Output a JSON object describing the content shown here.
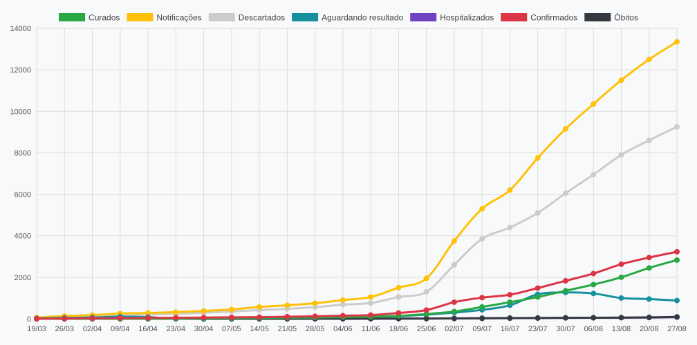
{
  "chart_data": {
    "type": "line",
    "categories": [
      "19/03",
      "26/03",
      "02/04",
      "09/04",
      "16/04",
      "23/04",
      "30/04",
      "07/05",
      "14/05",
      "21/05",
      "28/05",
      "04/06",
      "11/06",
      "18/06",
      "25/06",
      "02/07",
      "09/07",
      "16/07",
      "23/07",
      "30/07",
      "06/08",
      "13/08",
      "20/08",
      "27/08"
    ],
    "y_ticks": [
      0,
      2000,
      4000,
      6000,
      8000,
      10000,
      12000,
      14000
    ],
    "ylim": [
      0,
      14000
    ],
    "grid": true,
    "legend_position": "top",
    "series": [
      {
        "name": "Curados",
        "color": "#28a745",
        "values": [
          0,
          0,
          0,
          0,
          0,
          0,
          20,
          30,
          40,
          50,
          60,
          80,
          100,
          140,
          230,
          350,
          570,
          800,
          1050,
          1350,
          1650,
          2000,
          2450,
          2830
        ]
      },
      {
        "name": "Notificações",
        "color": "#ffc107",
        "values": [
          60,
          130,
          180,
          250,
          280,
          320,
          380,
          450,
          570,
          650,
          750,
          900,
          1050,
          1500,
          1950,
          3750,
          5300,
          6200,
          7750,
          9150,
          10350,
          11500,
          12500,
          13350
        ]
      },
      {
        "name": "Descartados",
        "color": "#cccccc",
        "values": [
          30,
          80,
          120,
          180,
          200,
          240,
          290,
          350,
          420,
          480,
          560,
          680,
          760,
          1050,
          1300,
          2600,
          3850,
          4400,
          5100,
          6050,
          6950,
          7900,
          8600,
          9250
        ]
      },
      {
        "name": "Aguardando resultado",
        "color": "#17909e",
        "values": [
          20,
          40,
          60,
          100,
          80,
          0,
          0,
          20,
          30,
          40,
          50,
          60,
          100,
          130,
          200,
          300,
          430,
          650,
          1180,
          1270,
          1220,
          1000,
          950,
          880
        ]
      },
      {
        "name": "Hospitalizados",
        "color": "#6f42c1",
        "values": [
          0,
          0,
          0,
          0,
          0,
          0,
          0,
          0,
          0,
          0,
          0,
          0,
          5,
          10,
          15,
          20,
          30,
          35,
          40,
          45,
          50,
          55,
          60,
          80
        ]
      },
      {
        "name": "Confirmados",
        "color": "#dc3545",
        "values": [
          0,
          10,
          20,
          30,
          40,
          50,
          60,
          70,
          80,
          100,
          120,
          150,
          180,
          280,
          420,
          800,
          1020,
          1160,
          1480,
          1830,
          2180,
          2630,
          2950,
          3230
        ]
      },
      {
        "name": "Óbitos",
        "color": "#343a40",
        "values": [
          0,
          0,
          0,
          0,
          0,
          0,
          0,
          0,
          0,
          0,
          5,
          5,
          5,
          10,
          10,
          15,
          20,
          30,
          35,
          45,
          50,
          55,
          70,
          90
        ]
      }
    ]
  }
}
